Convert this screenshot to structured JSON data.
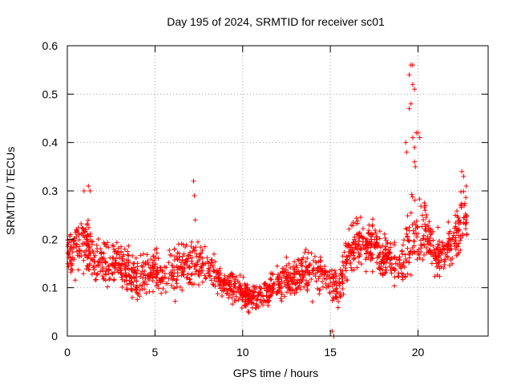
{
  "chart_data": {
    "type": "scatter",
    "title": "Day 195 of 2024, SRMTID for receiver sc01",
    "xlabel": "GPS time / hours",
    "ylabel": "SRMTID / TECUs",
    "xlim": [
      0,
      24
    ],
    "ylim": [
      0,
      0.6
    ],
    "x_ticks": [
      0,
      5,
      10,
      15,
      20
    ],
    "y_ticks": [
      0,
      0.1,
      0.2,
      0.3,
      0.4,
      0.5,
      0.6
    ],
    "x_tick_labels": [
      "0",
      "5",
      "10",
      "15",
      "20"
    ],
    "y_tick_labels": [
      "0",
      "0.1",
      "0.2",
      "0.3",
      "0.4",
      "0.5",
      "0.6"
    ],
    "grid": true,
    "marker": "+",
    "color": "#ff0000",
    "series": [
      {
        "name": "sc01",
        "trend": {
          "x": [
            0,
            0.5,
            1,
            1.5,
            2,
            2.5,
            3,
            3.5,
            4,
            4.5,
            5,
            5.5,
            6,
            6.5,
            7,
            7.5,
            8,
            8.5,
            9,
            9.5,
            10,
            10.5,
            11,
            11.5,
            12,
            12.5,
            13,
            13.5,
            14,
            14.5,
            15,
            15.5,
            16,
            16.5,
            17,
            17.5,
            18,
            18.5,
            19,
            19.5,
            20,
            20.5,
            21,
            21.5,
            22,
            22.5,
            22.8
          ],
          "y": [
            0.17,
            0.19,
            0.2,
            0.16,
            0.15,
            0.16,
            0.15,
            0.13,
            0.12,
            0.13,
            0.14,
            0.12,
            0.13,
            0.14,
            0.15,
            0.15,
            0.14,
            0.13,
            0.11,
            0.1,
            0.09,
            0.08,
            0.08,
            0.09,
            0.11,
            0.12,
            0.12,
            0.13,
            0.14,
            0.13,
            0.11,
            0.1,
            0.17,
            0.19,
            0.18,
            0.2,
            0.17,
            0.16,
            0.14,
            0.2,
            0.22,
            0.21,
            0.17,
            0.17,
            0.2,
            0.23,
            0.25
          ]
        },
        "spread": [
          0.1,
          0.12,
          0.12,
          0.1,
          0.1,
          0.1,
          0.1,
          0.09,
          0.09,
          0.09,
          0.09,
          0.09,
          0.09,
          0.1,
          0.11,
          0.1,
          0.09,
          0.08,
          0.07,
          0.07,
          0.06,
          0.06,
          0.06,
          0.06,
          0.07,
          0.08,
          0.08,
          0.09,
          0.1,
          0.09,
          0.08,
          0.08,
          0.1,
          0.11,
          0.1,
          0.12,
          0.1,
          0.1,
          0.1,
          0.14,
          0.14,
          0.13,
          0.1,
          0.1,
          0.11,
          0.12,
          0.12
        ],
        "count": 1700,
        "notable_points": {
          "x": [
            0.95,
            1.2,
            1.3,
            7.2,
            7.25,
            7.3,
            15.1,
            15.2,
            19.5,
            19.6,
            19.7,
            19.7,
            19.8,
            19.5,
            19.6,
            19.9,
            19.7,
            19.8,
            20.0,
            20.1,
            19.3,
            19.35,
            19.8,
            19.85,
            22.5,
            22.6,
            22.75
          ],
          "y": [
            0.3,
            0.31,
            0.3,
            0.32,
            0.29,
            0.24,
            0.01,
            0.0,
            0.54,
            0.56,
            0.56,
            0.52,
            0.51,
            0.47,
            0.48,
            0.42,
            0.41,
            0.39,
            0.42,
            0.41,
            0.4,
            0.38,
            0.36,
            0.35,
            0.34,
            0.33,
            0.31
          ]
        }
      }
    ]
  }
}
